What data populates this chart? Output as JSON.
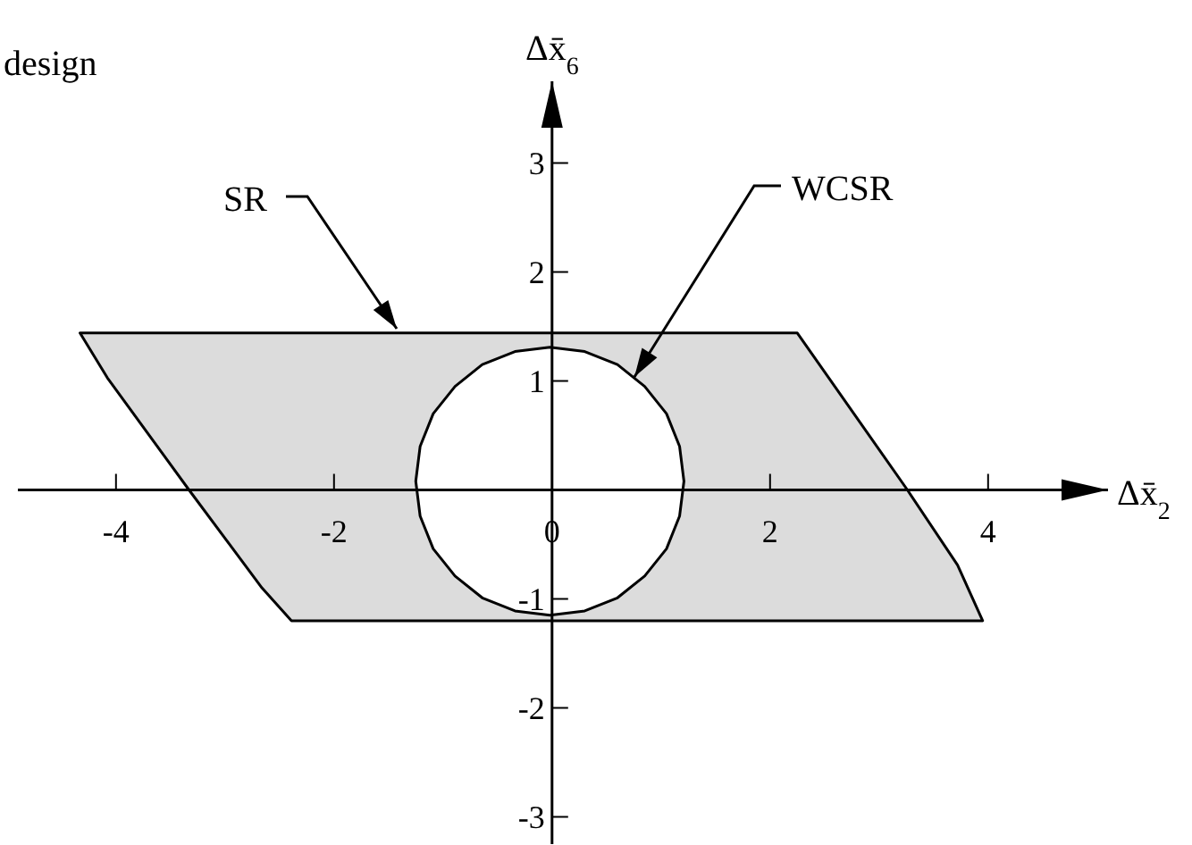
{
  "chart_data": {
    "type": "area",
    "xlabel": "Δx̄$_{2}$",
    "ylabel": "Δx̄$_{6}$",
    "annotations": [
      "design"
    ],
    "xlim": [
      -4.9,
      5.1
    ],
    "ylim": [
      -3.25,
      3.75
    ],
    "xticks": [
      -4,
      -2,
      0,
      2,
      4
    ],
    "yticks": [
      -3,
      -2,
      -1,
      1,
      2,
      3
    ],
    "grid": false,
    "marker": "none",
    "line_style": "solid",
    "series": [
      {
        "name": "SR",
        "type": "area",
        "color": "#dcdcdc",
        "x": [
          -4.33,
          2.25,
          3.26,
          3.72,
          3.95,
          -2.39,
          -2.66,
          -3.33,
          -4.08,
          -4.33
        ],
        "values": [
          1.44,
          1.44,
          0,
          -0.69,
          -1.2,
          -1.2,
          -0.9,
          0,
          1.03,
          1.44
        ]
      },
      {
        "name": "WCSR",
        "type": "area",
        "color": "#ffffff",
        "x": [
          1.21,
          1.17,
          1.05,
          0.85,
          0.6,
          0.3,
          -0.02,
          -0.34,
          -0.64,
          -0.89,
          -1.09,
          -1.21,
          -1.25,
          -1.21,
          -1.09,
          -0.89,
          -0.64,
          -0.34,
          -0.02,
          0.3,
          0.6,
          0.85,
          1.05,
          1.17,
          1.21
        ],
        "values": [
          0.08,
          0.4,
          0.7,
          0.95,
          1.15,
          1.27,
          1.31,
          1.27,
          1.15,
          0.95,
          0.7,
          0.4,
          0.08,
          -0.24,
          -0.54,
          -0.79,
          -0.99,
          -1.11,
          -1.15,
          -1.11,
          -0.99,
          -0.79,
          -0.54,
          -0.24,
          0.08
        ]
      }
    ]
  }
}
